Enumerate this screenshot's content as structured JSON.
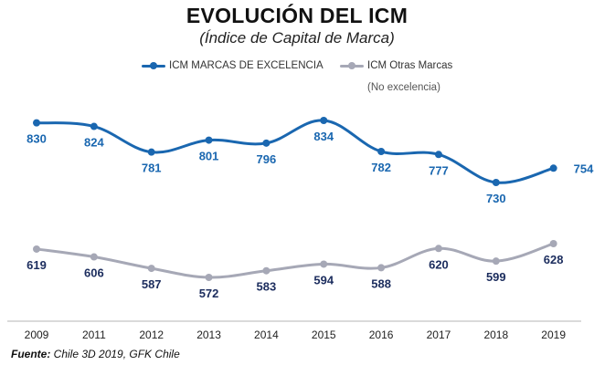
{
  "chart_data": {
    "type": "line",
    "title": "EVOLUCIÓN DEL ICM",
    "subtitle": "(Índice de Capital de Marca)",
    "categories": [
      "2009",
      "2011",
      "2012",
      "2013",
      "2014",
      "2015",
      "2016",
      "2017",
      "2018",
      "2019"
    ],
    "series": [
      {
        "name": "ICM MARCAS DE EXCELENCIA",
        "values": [
          830,
          824,
          781,
          801,
          796,
          834,
          782,
          777,
          730,
          754
        ],
        "color": "#1a67b0",
        "label_color": "#1a67b0"
      },
      {
        "name": "ICM Otras Marcas",
        "note": "(No excelencia)",
        "values": [
          619,
          606,
          587,
          572,
          583,
          594,
          588,
          620,
          599,
          628
        ],
        "color": "#a6a8b6",
        "label_color": "#1c2d5e"
      }
    ],
    "legend_position": "top",
    "grid": false,
    "source_label": "Fuente:",
    "source_text": " Chile 3D 2019, GFK Chile"
  }
}
